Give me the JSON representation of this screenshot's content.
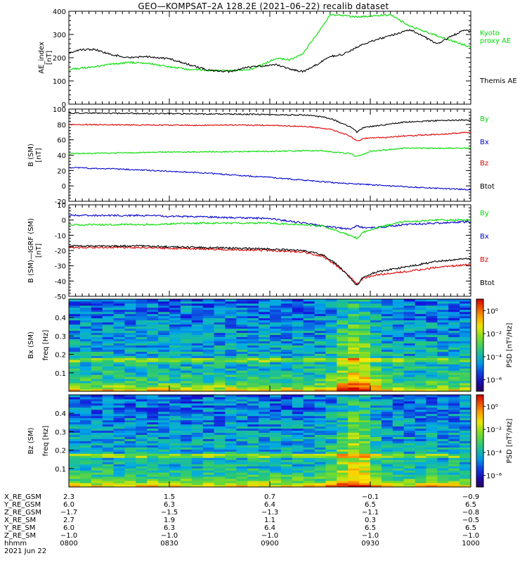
{
  "title": "GEO—KOMPSAT–2A 128.2E (2021–06–22) recalib dataset",
  "chart_data": [
    {
      "type": "line",
      "panel": "ae",
      "ylabel": "AE_index",
      "yunit": "[nT]",
      "ylim": [
        0,
        400
      ],
      "yticks": [
        0,
        100,
        200,
        300,
        400
      ],
      "xlim": [
        0,
        120
      ],
      "series": [
        {
          "name": "Kyoto proxy AE",
          "label_lines": [
            "Kyoto",
            "proxy AE"
          ],
          "color": "#00dd00",
          "x": [
            0,
            6,
            12,
            18,
            24,
            30,
            36,
            42,
            48,
            54,
            58,
            62,
            66,
            70,
            74,
            78,
            82,
            86,
            90,
            96,
            102,
            108,
            114,
            120
          ],
          "y": [
            150,
            158,
            170,
            180,
            175,
            160,
            150,
            145,
            143,
            148,
            172,
            198,
            190,
            220,
            300,
            385,
            380,
            375,
            380,
            385,
            335,
            305,
            275,
            245
          ]
        },
        {
          "name": "Themis AE",
          "label_lines": [
            "Themis AE"
          ],
          "color": "#000000",
          "x": [
            0,
            4,
            8,
            12,
            18,
            24,
            30,
            36,
            42,
            48,
            54,
            58,
            62,
            66,
            70,
            74,
            78,
            82,
            86,
            90,
            96,
            102,
            106,
            110,
            114,
            118,
            120
          ],
          "y": [
            220,
            235,
            235,
            215,
            200,
            205,
            195,
            170,
            145,
            140,
            160,
            165,
            170,
            150,
            140,
            170,
            205,
            215,
            245,
            270,
            295,
            320,
            290,
            260,
            290,
            320,
            310
          ]
        }
      ]
    },
    {
      "type": "line",
      "panel": "b-sm",
      "ylabel": "B (SM)",
      "yunit": "[nT]",
      "ylim": [
        -20,
        100
      ],
      "yticks": [
        -20,
        0,
        20,
        40,
        60,
        80,
        100
      ],
      "xlim": [
        0,
        120
      ],
      "series": [
        {
          "name": "Bx",
          "color": "#0000cc",
          "x": [
            0,
            20,
            40,
            60,
            80,
            100,
            110,
            120
          ],
          "y": [
            24,
            21,
            17,
            11,
            4,
            -1,
            -3,
            -5
          ]
        },
        {
          "name": "By",
          "color": "#00dd00",
          "x": [
            0,
            30,
            60,
            75,
            84,
            86,
            90,
            100,
            120
          ],
          "y": [
            42,
            44,
            45,
            46,
            42,
            38,
            45,
            49,
            49
          ]
        },
        {
          "name": "Bz",
          "color": "#dd0000",
          "x": [
            0,
            30,
            60,
            72,
            78,
            84,
            86,
            88,
            95,
            100,
            110,
            120
          ],
          "y": [
            80,
            79,
            79,
            77,
            74,
            65,
            58,
            62,
            63,
            65,
            67,
            70
          ]
        },
        {
          "name": "Btot",
          "color": "#000000",
          "x": [
            0,
            30,
            60,
            72,
            78,
            84,
            86,
            88,
            95,
            100,
            110,
            120
          ],
          "y": [
            95,
            94,
            93,
            92,
            88,
            77,
            70,
            76,
            80,
            83,
            85,
            86
          ]
        }
      ]
    },
    {
      "type": "line",
      "panel": "b-minus-igrf",
      "ylabel": "B (SM)—IGRF (SM)",
      "yunit": "[nT]",
      "ylim": [
        -50,
        10
      ],
      "yticks": [
        -50,
        -40,
        -30,
        -20,
        -10,
        0,
        10
      ],
      "xlim": [
        0,
        120
      ],
      "series": [
        {
          "name": "Bx",
          "color": "#0000cc",
          "x": [
            0,
            20,
            40,
            60,
            70,
            76,
            80,
            84,
            86,
            88,
            92,
            100,
            110,
            120
          ],
          "y": [
            3,
            3,
            2,
            1,
            -2,
            -4,
            -5,
            -6,
            -4,
            -5,
            -5,
            -3,
            -2,
            -1
          ]
        },
        {
          "name": "By",
          "color": "#00dd00",
          "x": [
            0,
            20,
            40,
            60,
            70,
            76,
            80,
            84,
            86,
            88,
            92,
            100,
            110,
            120
          ],
          "y": [
            -3,
            -3,
            -2,
            -2,
            -3,
            -4,
            -7,
            -10,
            -12,
            -8,
            -5,
            -1,
            0,
            0
          ]
        },
        {
          "name": "Bz",
          "color": "#dd0000",
          "x": [
            0,
            20,
            40,
            60,
            70,
            76,
            80,
            84,
            86,
            88,
            92,
            100,
            110,
            120
          ],
          "y": [
            -18,
            -18,
            -19,
            -20,
            -21,
            -24,
            -30,
            -37,
            -42,
            -38,
            -36,
            -34,
            -31,
            -29
          ]
        },
        {
          "name": "Btot",
          "color": "#000000",
          "x": [
            0,
            20,
            40,
            60,
            70,
            76,
            80,
            84,
            86,
            88,
            92,
            100,
            110,
            120
          ],
          "y": [
            -17,
            -17,
            -18,
            -19,
            -20,
            -23,
            -29,
            -38,
            -43,
            -37,
            -34,
            -31,
            -27,
            -25
          ]
        }
      ]
    },
    {
      "type": "heatmap",
      "panel": "bx-spec",
      "ylabel": "Bx (SM)",
      "ylabel2": "freq [Hz]",
      "ylim": [
        0,
        0.5
      ],
      "yticks": [
        0.1,
        0.2,
        0.3,
        0.4
      ],
      "colorbar": {
        "label": "PSD [nT²/Hz]",
        "ticks": [
          "10⁰",
          "10⁻²",
          "10⁻⁴",
          "10⁻⁶"
        ],
        "exponents": [
          0,
          -2,
          -4,
          -6
        ],
        "range": [
          -7,
          1
        ]
      }
    },
    {
      "type": "heatmap",
      "panel": "bz-spec",
      "ylabel": "Bz (SM)",
      "ylabel2": "freq [Hz]",
      "ylim": [
        0,
        0.5
      ],
      "yticks": [
        0.1,
        0.2,
        0.3,
        0.4
      ],
      "colorbar": {
        "label": "PSD [nT²/Hz]",
        "ticks": [
          "10⁰",
          "10⁻²",
          "10⁻⁴",
          "10⁻⁶"
        ],
        "exponents": [
          0,
          -2,
          -4,
          -6
        ],
        "range": [
          -7,
          1
        ]
      }
    }
  ],
  "ephemeris": {
    "row_labels": [
      "X_RE_GSM",
      "Y_RE_GSM",
      "Z_RE_GSM",
      "X_RE_SM",
      "Y_RE_SM",
      "Z_RE_SM",
      "hhmm"
    ],
    "date": "2021 Jun 22",
    "columns": [
      {
        "values": [
          "2.3",
          "6.0",
          "−1.7",
          "2.7",
          "6.0",
          "−1.0",
          "0800"
        ]
      },
      {
        "values": [
          "1.5",
          "6.3",
          "−1.5",
          "1.9",
          "6.3",
          "−1.0",
          "0830"
        ]
      },
      {
        "values": [
          "0.7",
          "6.4",
          "−1.3",
          "1.1",
          "6.4",
          "−1.0",
          "0900"
        ]
      },
      {
        "values": [
          "−0.1",
          "6.5",
          "−1.1",
          "0.3",
          "6.5",
          "−1.0",
          "0930"
        ]
      },
      {
        "values": [
          "−0.9",
          "6.5",
          "−0.8",
          "−0.5",
          "6.5",
          "−1.0",
          "1000"
        ]
      }
    ]
  }
}
